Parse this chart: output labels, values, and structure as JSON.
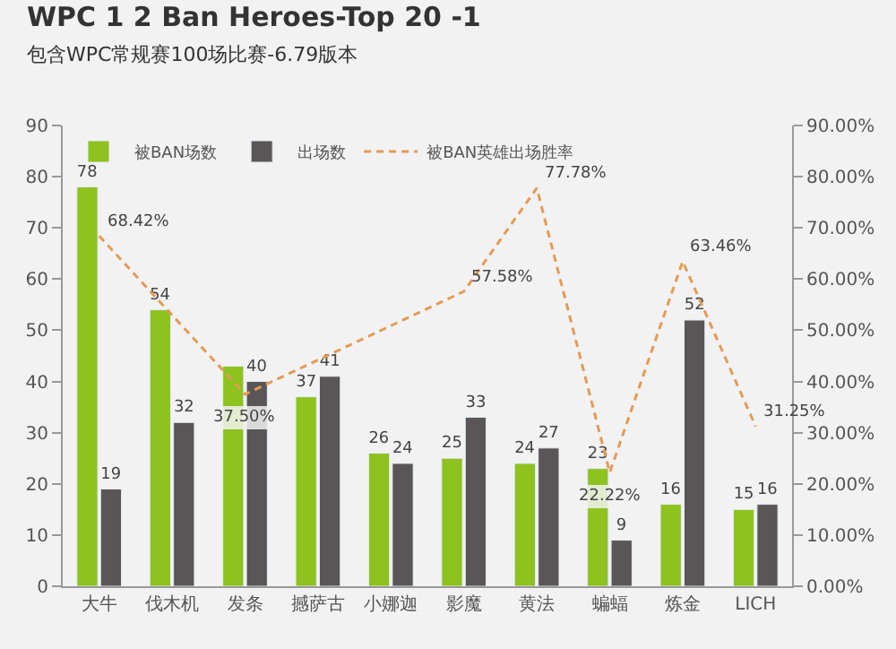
{
  "chart_data": {
    "type": "bar",
    "title": "WPC 1 2 Ban Heroes-Top 20 -1",
    "subtitle": "包含WPC常规赛100场比赛-6.79版本",
    "categories": [
      "大牛",
      "伐木机",
      "发条",
      "撼萨古",
      "小娜迦",
      "影魔",
      "黄法",
      "蝙蝠",
      "炼金",
      "LICH"
    ],
    "series": [
      {
        "name": "被BAN场数",
        "color": "#8dc21f",
        "values": [
          78,
          54,
          43,
          37,
          26,
          25,
          24,
          23,
          16,
          15
        ],
        "value_labels": [
          "78",
          "54",
          null,
          "37",
          "26",
          "25",
          "24",
          "23",
          "16",
          "15"
        ]
      },
      {
        "name": "出场数",
        "color": "#5a5556",
        "values": [
          19,
          32,
          40,
          41,
          24,
          33,
          27,
          9,
          52,
          16
        ],
        "value_labels": [
          "19",
          "32",
          "40",
          "41",
          "24",
          "33",
          "27",
          "9",
          "52",
          "16"
        ]
      },
      {
        "name": "被BAN英雄出场胜率",
        "color": "#e59a55",
        "type": "line",
        "axis": "y2",
        "line_style": "dashed",
        "marker": "none",
        "values": [
          68.42,
          null,
          37.5,
          null,
          null,
          57.58,
          77.78,
          22.22,
          63.46,
          31.25
        ],
        "value_labels": [
          "68.42%",
          null,
          "37.50%",
          null,
          null,
          "57.58%",
          "77.78%",
          "22.22%",
          "63.46%",
          "31.25%"
        ]
      }
    ],
    "ylim": [
      0,
      90
    ],
    "yticks": [
      0,
      10,
      20,
      30,
      40,
      50,
      60,
      70,
      80,
      90
    ],
    "y2lim": [
      0,
      90
    ],
    "y2ticks": [
      {
        "value": 0,
        "label": "0.00%"
      },
      {
        "value": 10,
        "label": "10.00%"
      },
      {
        "value": 20,
        "label": "20.00%"
      },
      {
        "value": 30,
        "label": "30.00%"
      },
      {
        "value": 40,
        "label": "40.00%"
      },
      {
        "value": 50,
        "label": "50.00%"
      },
      {
        "value": 60,
        "label": "60.00%"
      },
      {
        "value": 70,
        "label": "70.00%"
      },
      {
        "value": 80,
        "label": "80.00%"
      },
      {
        "value": 90,
        "label": "90.00%"
      }
    ],
    "grid": false,
    "legend": "top left"
  }
}
